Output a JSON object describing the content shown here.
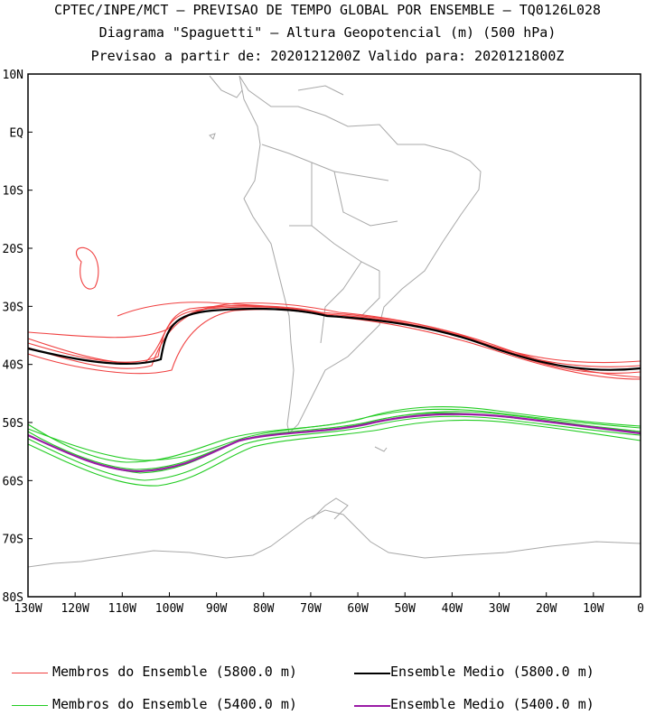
{
  "header": {
    "line1": "CPTEC/INPE/MCT – PREVISAO DE TEMPO GLOBAL POR ENSEMBLE – TQ0126L028",
    "line2": "Diagrama \"Spaguetti\" – Altura Geopotencial (m) (500 hPa)",
    "line3": "Previsao a partir de: 2020121200Z   Valido para: 2020121800Z"
  },
  "lat_labels": [
    "10N",
    "EQ",
    "10S",
    "20S",
    "30S",
    "40S",
    "50S",
    "60S",
    "70S",
    "80S"
  ],
  "lon_labels": [
    "130W",
    "120W",
    "110W",
    "100W",
    "90W",
    "80W",
    "70W",
    "60W",
    "50W",
    "40W",
    "30W",
    "20W",
    "10W",
    "0"
  ],
  "legend": {
    "members_5800": "Membros do Ensemble (5800.0 m)",
    "mean_5800": "Ensemble Medio (5800.0 m)",
    "members_5400": "Membros do Ensemble (5400.0 m)",
    "mean_5400": "Ensemble Medio (5400.0 m)"
  },
  "colors": {
    "members_5800": "#f04040",
    "mean_5800": "#000000",
    "members_5400": "#22cc22",
    "mean_5400": "#9a1aa6",
    "coastline": "#a8a8a8",
    "frame": "#000000"
  }
}
